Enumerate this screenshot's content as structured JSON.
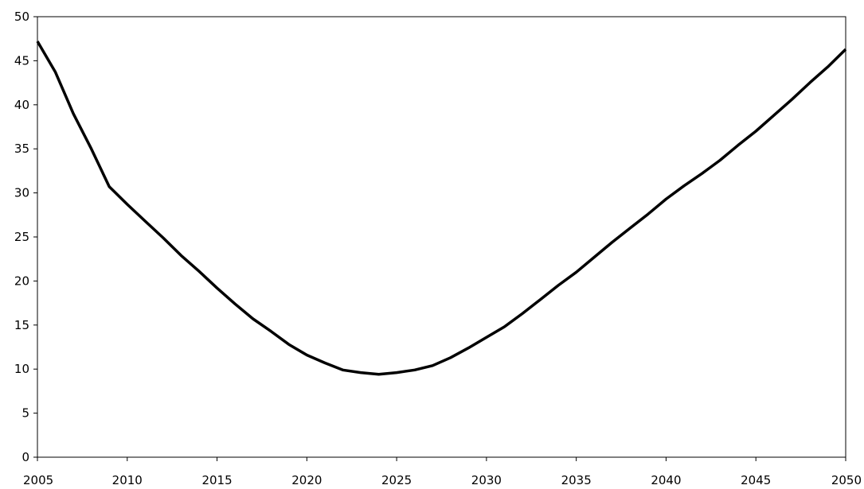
{
  "chart_data": {
    "type": "line",
    "title": "",
    "xlabel": "",
    "ylabel": "",
    "xlim": [
      2005,
      2050
    ],
    "ylim": [
      0,
      50
    ],
    "grid": false,
    "legend": "none",
    "x_ticks": [
      2005,
      2010,
      2015,
      2020,
      2025,
      2030,
      2035,
      2040,
      2045,
      2050
    ],
    "x_tick_labels": [
      "2005",
      "2010",
      "2015",
      "2020",
      "2025",
      "2030",
      "2035",
      "2040",
      "2045",
      "2050"
    ],
    "y_ticks": [
      0,
      5,
      10,
      15,
      20,
      25,
      30,
      35,
      40,
      45,
      50
    ],
    "y_tick_labels": [
      "0",
      "5",
      "10",
      "15",
      "20",
      "25",
      "30",
      "35",
      "40",
      "45",
      "50"
    ],
    "series": [
      {
        "color": "#000000",
        "x": [
          2005,
          2006,
          2007,
          2008,
          2009,
          2010,
          2011,
          2012,
          2013,
          2014,
          2015,
          2016,
          2017,
          2018,
          2019,
          2020,
          2021,
          2022,
          2023,
          2024,
          2025,
          2026,
          2027,
          2028,
          2029,
          2030,
          2031,
          2032,
          2033,
          2034,
          2035,
          2036,
          2037,
          2038,
          2039,
          2040,
          2041,
          2042,
          2043,
          2044,
          2045,
          2046,
          2047,
          2048,
          2049,
          2050
        ],
        "values": [
          47.2,
          43.7,
          39.0,
          35.0,
          30.7,
          28.7,
          26.8,
          24.9,
          22.9,
          21.1,
          19.2,
          17.4,
          15.7,
          14.3,
          12.8,
          11.6,
          10.7,
          9.9,
          9.6,
          9.4,
          9.6,
          9.9,
          10.4,
          11.3,
          12.4,
          13.6,
          14.8,
          16.3,
          17.9,
          19.5,
          21.0,
          22.7,
          24.4,
          26.0,
          27.6,
          29.3,
          30.8,
          32.2,
          33.7,
          35.4,
          37.0,
          38.8,
          40.6,
          42.5,
          44.3,
          46.3
        ]
      }
    ]
  }
}
